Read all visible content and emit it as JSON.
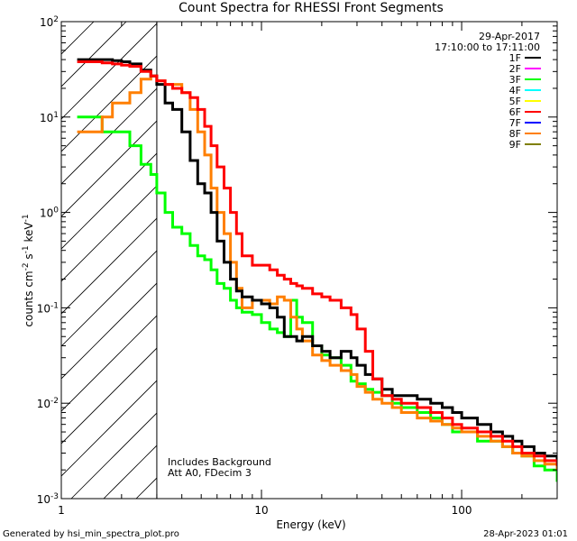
{
  "chart_data": {
    "type": "line",
    "title": "Count Spectra for RHESSI Front Segments",
    "xlabel": "Energy (keV)",
    "ylabel_parts": {
      "base": "counts cm",
      "exp1": "-2",
      "mid": " s",
      "exp2": "-1",
      "tail": " keV",
      "exp3": "-1"
    },
    "x_scale": "log",
    "y_scale": "log",
    "xlim": [
      1,
      300
    ],
    "ylim": [
      0.001,
      100
    ],
    "x_ticks": [
      {
        "value": 1,
        "label": "1"
      },
      {
        "value": 10,
        "label": "10"
      },
      {
        "value": 100,
        "label": "100"
      }
    ],
    "y_ticks": [
      {
        "value": 0.001,
        "base": "10",
        "exp": "-3"
      },
      {
        "value": 0.01,
        "base": "10",
        "exp": "-2"
      },
      {
        "value": 0.1,
        "base": "10",
        "exp": "-1"
      },
      {
        "value": 1,
        "base": "10",
        "exp": "0"
      },
      {
        "value": 10,
        "base": "10",
        "exp": "1"
      },
      {
        "value": 100,
        "base": "10",
        "exp": "2"
      }
    ],
    "excluded_region": {
      "from": 1,
      "to": 3
    },
    "date": "29-Apr-2017",
    "time_range": "17:10:00 to 17:11:00",
    "legend_position": "top-right",
    "legend": [
      {
        "name": "1F",
        "color": "#000000"
      },
      {
        "name": "2F",
        "color": "#ff00ff"
      },
      {
        "name": "3F",
        "color": "#00ff00"
      },
      {
        "name": "4F",
        "color": "#00ffff"
      },
      {
        "name": "5F",
        "color": "#ffff00"
      },
      {
        "name": "6F",
        "color": "#ff0000"
      },
      {
        "name": "7F",
        "color": "#0000ff"
      },
      {
        "name": "8F",
        "color": "#ff7f00"
      },
      {
        "name": "9F",
        "color": "#7f7f00"
      }
    ],
    "annotations": [
      "Includes Background",
      "Att A0, FDecim 3"
    ],
    "series": [
      {
        "name": "3F",
        "color": "#00ff00",
        "x": [
          1.2,
          1.4,
          1.6,
          1.8,
          2.0,
          2.2,
          2.5,
          2.8,
          3.0,
          3.3,
          3.6,
          4.0,
          4.4,
          4.8,
          5.2,
          5.6,
          6.0,
          6.5,
          7.0,
          7.5,
          8.0,
          9.0,
          10,
          11,
          12,
          13,
          14,
          15,
          16,
          18,
          20,
          22,
          25,
          28,
          30,
          33,
          36,
          40,
          45,
          50,
          60,
          70,
          80,
          90,
          100,
          120,
          140,
          160,
          180,
          200,
          230,
          260,
          300
        ],
        "values": [
          10,
          10,
          7,
          7,
          7,
          5,
          3.2,
          2.5,
          1.6,
          1.0,
          0.7,
          0.6,
          0.45,
          0.35,
          0.32,
          0.25,
          0.18,
          0.16,
          0.12,
          0.1,
          0.09,
          0.085,
          0.07,
          0.06,
          0.055,
          0.05,
          0.12,
          0.08,
          0.07,
          0.04,
          0.032,
          0.03,
          0.025,
          0.017,
          0.016,
          0.014,
          0.013,
          0.012,
          0.01,
          0.009,
          0.008,
          0.007,
          0.006,
          0.005,
          0.005,
          0.004,
          0.004,
          0.0035,
          0.003,
          0.0028,
          0.0022,
          0.002,
          0.0015
        ]
      },
      {
        "name": "8F",
        "color": "#ff7f00",
        "x": [
          1.2,
          1.4,
          1.6,
          1.8,
          2.0,
          2.2,
          2.5,
          2.8,
          3.0,
          3.3,
          3.6,
          4.0,
          4.4,
          4.8,
          5.2,
          5.6,
          6.0,
          6.5,
          7.0,
          7.5,
          8.0,
          9.0,
          10,
          11,
          12,
          13,
          14,
          15,
          16,
          18,
          20,
          22,
          25,
          28,
          30,
          33,
          36,
          40,
          45,
          50,
          60,
          70,
          80,
          90,
          100,
          120,
          140,
          160,
          180,
          200,
          230,
          260,
          300
        ],
        "values": [
          7,
          7,
          10,
          14,
          14,
          18,
          25,
          27,
          24,
          22,
          22,
          18,
          12,
          7,
          4,
          1.8,
          1.0,
          0.6,
          0.3,
          0.16,
          0.1,
          0.12,
          0.12,
          0.11,
          0.13,
          0.12,
          0.08,
          0.06,
          0.045,
          0.032,
          0.028,
          0.025,
          0.022,
          0.02,
          0.015,
          0.013,
          0.011,
          0.01,
          0.009,
          0.008,
          0.007,
          0.0065,
          0.006,
          0.0055,
          0.005,
          0.0045,
          0.004,
          0.0035,
          0.003,
          0.0028,
          0.0025,
          0.0023,
          0.002
        ]
      },
      {
        "name": "1F",
        "color": "#000000",
        "x": [
          1.2,
          1.4,
          1.6,
          1.8,
          2.0,
          2.2,
          2.5,
          2.8,
          3.0,
          3.3,
          3.6,
          4.0,
          4.4,
          4.8,
          5.2,
          5.6,
          6.0,
          6.5,
          7.0,
          7.5,
          8.0,
          9.0,
          10,
          11,
          12,
          13,
          14,
          15,
          16,
          18,
          20,
          22,
          25,
          28,
          30,
          33,
          36,
          40,
          45,
          50,
          60,
          70,
          80,
          90,
          100,
          120,
          140,
          160,
          180,
          200,
          230,
          260,
          300
        ],
        "values": [
          40,
          40,
          40,
          39,
          38,
          36,
          31,
          27,
          22,
          14,
          12,
          7,
          3.5,
          2.0,
          1.6,
          1.0,
          0.5,
          0.3,
          0.2,
          0.15,
          0.13,
          0.12,
          0.11,
          0.1,
          0.08,
          0.05,
          0.05,
          0.045,
          0.05,
          0.04,
          0.035,
          0.03,
          0.035,
          0.03,
          0.025,
          0.02,
          0.018,
          0.014,
          0.012,
          0.012,
          0.011,
          0.01,
          0.009,
          0.008,
          0.007,
          0.006,
          0.005,
          0.0045,
          0.004,
          0.0035,
          0.003,
          0.0028,
          0.0025
        ]
      },
      {
        "name": "6F",
        "color": "#ff0000",
        "x": [
          1.2,
          1.4,
          1.6,
          1.8,
          2.0,
          2.2,
          2.5,
          2.8,
          3.0,
          3.3,
          3.6,
          4.0,
          4.4,
          4.8,
          5.2,
          5.6,
          6.0,
          6.5,
          7.0,
          7.5,
          8.0,
          9.0,
          10,
          11,
          12,
          13,
          14,
          15,
          16,
          18,
          20,
          22,
          25,
          28,
          30,
          33,
          36,
          40,
          45,
          50,
          60,
          70,
          80,
          90,
          100,
          120,
          140,
          160,
          180,
          200,
          230,
          260,
          300
        ],
        "values": [
          38,
          38,
          37,
          36,
          35,
          34,
          30,
          27,
          24,
          22,
          20,
          18,
          16,
          12,
          8,
          5,
          3,
          1.8,
          1.0,
          0.6,
          0.35,
          0.28,
          0.28,
          0.25,
          0.22,
          0.2,
          0.18,
          0.17,
          0.16,
          0.14,
          0.13,
          0.12,
          0.1,
          0.085,
          0.06,
          0.035,
          0.018,
          0.012,
          0.011,
          0.01,
          0.009,
          0.008,
          0.007,
          0.006,
          0.0055,
          0.005,
          0.0045,
          0.004,
          0.0035,
          0.003,
          0.0028,
          0.0025,
          0.0022
        ]
      }
    ],
    "footer_left": "Generated by hsi_min_spectra_plot.pro",
    "footer_right": "28-Apr-2023 01:01"
  }
}
